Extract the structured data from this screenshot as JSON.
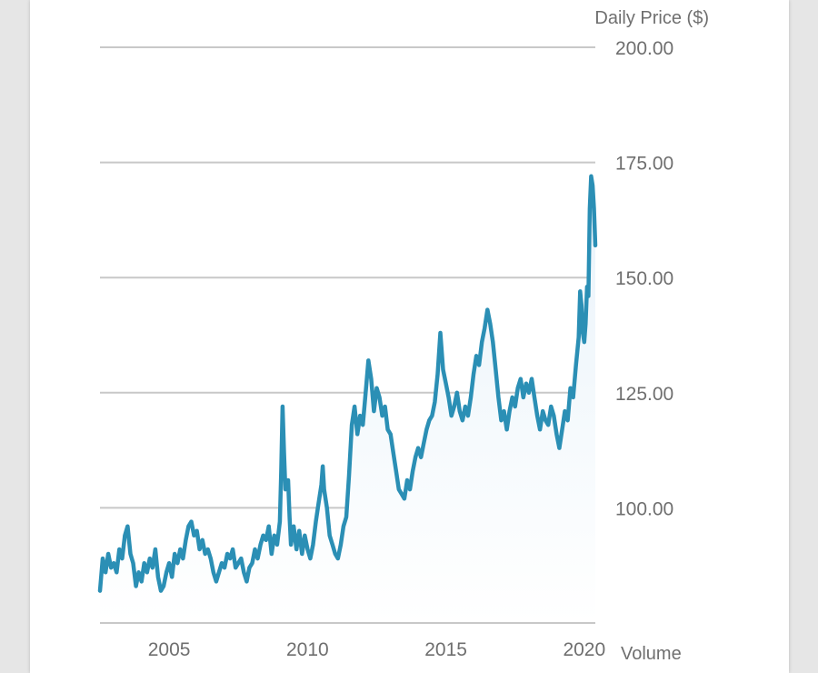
{
  "colors": {
    "line": "#2b8fb5",
    "grid": "#c8c8c8",
    "text": "#6f6f6f",
    "fill_top": "#e9f3fa"
  },
  "chart_data": {
    "type": "area",
    "ylabel": "Daily Price ($)",
    "volume_label": "Volume",
    "ylim": [
      75,
      200
    ],
    "xlim": [
      2002.5,
      2020.4
    ],
    "y_ticks": [
      "100.00",
      "125.00",
      "150.00",
      "175.00",
      "200.00"
    ],
    "y_tick_values": [
      100,
      125,
      150,
      175,
      200
    ],
    "x_ticks": [
      "2005",
      "2010",
      "2015",
      "2020"
    ],
    "x_tick_values": [
      2005,
      2010,
      2015,
      2020
    ],
    "grid": true,
    "series": [
      {
        "values": [
          [
            2002.5,
            82
          ],
          [
            2002.6,
            89
          ],
          [
            2002.7,
            86
          ],
          [
            2002.8,
            90
          ],
          [
            2002.9,
            87
          ],
          [
            2003.0,
            88
          ],
          [
            2003.1,
            86
          ],
          [
            2003.2,
            91
          ],
          [
            2003.3,
            89
          ],
          [
            2003.4,
            94
          ],
          [
            2003.5,
            96
          ],
          [
            2003.6,
            90
          ],
          [
            2003.7,
            88
          ],
          [
            2003.8,
            83
          ],
          [
            2003.9,
            86
          ],
          [
            2004.0,
            84
          ],
          [
            2004.1,
            88
          ],
          [
            2004.2,
            86
          ],
          [
            2004.3,
            89
          ],
          [
            2004.4,
            87
          ],
          [
            2004.5,
            91
          ],
          [
            2004.6,
            85
          ],
          [
            2004.7,
            82
          ],
          [
            2004.8,
            83
          ],
          [
            2004.9,
            86
          ],
          [
            2005.0,
            88
          ],
          [
            2005.1,
            85
          ],
          [
            2005.2,
            90
          ],
          [
            2005.3,
            88
          ],
          [
            2005.4,
            91
          ],
          [
            2005.5,
            89
          ],
          [
            2005.6,
            93
          ],
          [
            2005.7,
            96
          ],
          [
            2005.8,
            97
          ],
          [
            2005.9,
            94
          ],
          [
            2006.0,
            95
          ],
          [
            2006.1,
            91
          ],
          [
            2006.2,
            93
          ],
          [
            2006.3,
            90
          ],
          [
            2006.4,
            91
          ],
          [
            2006.5,
            89
          ],
          [
            2006.6,
            86
          ],
          [
            2006.7,
            84
          ],
          [
            2006.8,
            86
          ],
          [
            2006.9,
            88
          ],
          [
            2007.0,
            87
          ],
          [
            2007.1,
            90
          ],
          [
            2007.2,
            89
          ],
          [
            2007.3,
            91
          ],
          [
            2007.4,
            87
          ],
          [
            2007.5,
            88
          ],
          [
            2007.6,
            89
          ],
          [
            2007.7,
            86
          ],
          [
            2007.8,
            84
          ],
          [
            2007.9,
            87
          ],
          [
            2008.0,
            88
          ],
          [
            2008.1,
            91
          ],
          [
            2008.2,
            89
          ],
          [
            2008.3,
            92
          ],
          [
            2008.4,
            94
          ],
          [
            2008.5,
            93
          ],
          [
            2008.6,
            96
          ],
          [
            2008.7,
            90
          ],
          [
            2008.8,
            94
          ],
          [
            2008.9,
            92
          ],
          [
            2009.0,
            97
          ],
          [
            2009.05,
            108
          ],
          [
            2009.1,
            122
          ],
          [
            2009.15,
            112
          ],
          [
            2009.2,
            104
          ],
          [
            2009.3,
            106
          ],
          [
            2009.35,
            98
          ],
          [
            2009.4,
            92
          ],
          [
            2009.5,
            96
          ],
          [
            2009.6,
            91
          ],
          [
            2009.7,
            95
          ],
          [
            2009.8,
            90
          ],
          [
            2009.9,
            94
          ],
          [
            2010.0,
            91
          ],
          [
            2010.1,
            89
          ],
          [
            2010.2,
            92
          ],
          [
            2010.3,
            97
          ],
          [
            2010.4,
            101
          ],
          [
            2010.5,
            105
          ],
          [
            2010.55,
            109
          ],
          [
            2010.6,
            104
          ],
          [
            2010.7,
            100
          ],
          [
            2010.8,
            94
          ],
          [
            2010.9,
            92
          ],
          [
            2011.0,
            90
          ],
          [
            2011.1,
            89
          ],
          [
            2011.2,
            92
          ],
          [
            2011.3,
            96
          ],
          [
            2011.4,
            98
          ],
          [
            2011.5,
            107
          ],
          [
            2011.6,
            118
          ],
          [
            2011.7,
            122
          ],
          [
            2011.8,
            116
          ],
          [
            2011.9,
            120
          ],
          [
            2012.0,
            118
          ],
          [
            2012.1,
            125
          ],
          [
            2012.2,
            132
          ],
          [
            2012.3,
            128
          ],
          [
            2012.4,
            121
          ],
          [
            2012.5,
            126
          ],
          [
            2012.6,
            124
          ],
          [
            2012.7,
            120
          ],
          [
            2012.8,
            122
          ],
          [
            2012.9,
            117
          ],
          [
            2013.0,
            116
          ],
          [
            2013.1,
            112
          ],
          [
            2013.2,
            108
          ],
          [
            2013.3,
            104
          ],
          [
            2013.4,
            103
          ],
          [
            2013.5,
            102
          ],
          [
            2013.6,
            106
          ],
          [
            2013.7,
            104
          ],
          [
            2013.8,
            108
          ],
          [
            2013.9,
            111
          ],
          [
            2014.0,
            113
          ],
          [
            2014.1,
            111
          ],
          [
            2014.2,
            114
          ],
          [
            2014.3,
            117
          ],
          [
            2014.4,
            119
          ],
          [
            2014.5,
            120
          ],
          [
            2014.6,
            123
          ],
          [
            2014.7,
            129
          ],
          [
            2014.8,
            138
          ],
          [
            2014.9,
            130
          ],
          [
            2015.0,
            127
          ],
          [
            2015.1,
            124
          ],
          [
            2015.2,
            120
          ],
          [
            2015.3,
            122
          ],
          [
            2015.4,
            125
          ],
          [
            2015.5,
            121
          ],
          [
            2015.6,
            119
          ],
          [
            2015.7,
            122
          ],
          [
            2015.8,
            120
          ],
          [
            2015.9,
            124
          ],
          [
            2016.0,
            129
          ],
          [
            2016.1,
            133
          ],
          [
            2016.2,
            131
          ],
          [
            2016.3,
            136
          ],
          [
            2016.4,
            139
          ],
          [
            2016.5,
            143
          ],
          [
            2016.6,
            140
          ],
          [
            2016.7,
            136
          ],
          [
            2016.8,
            130
          ],
          [
            2016.9,
            124
          ],
          [
            2017.0,
            119
          ],
          [
            2017.1,
            121
          ],
          [
            2017.2,
            117
          ],
          [
            2017.3,
            121
          ],
          [
            2017.4,
            124
          ],
          [
            2017.5,
            122
          ],
          [
            2017.6,
            126
          ],
          [
            2017.7,
            128
          ],
          [
            2017.8,
            124
          ],
          [
            2017.9,
            127
          ],
          [
            2018.0,
            125
          ],
          [
            2018.1,
            128
          ],
          [
            2018.2,
            124
          ],
          [
            2018.3,
            120
          ],
          [
            2018.4,
            117
          ],
          [
            2018.5,
            121
          ],
          [
            2018.6,
            119
          ],
          [
            2018.7,
            118
          ],
          [
            2018.8,
            122
          ],
          [
            2018.9,
            120
          ],
          [
            2019.0,
            116
          ],
          [
            2019.1,
            113
          ],
          [
            2019.2,
            117
          ],
          [
            2019.3,
            121
          ],
          [
            2019.4,
            119
          ],
          [
            2019.5,
            126
          ],
          [
            2019.6,
            124
          ],
          [
            2019.7,
            131
          ],
          [
            2019.8,
            137
          ],
          [
            2019.85,
            147
          ],
          [
            2019.9,
            144
          ],
          [
            2019.95,
            138
          ],
          [
            2020.0,
            136
          ],
          [
            2020.05,
            140
          ],
          [
            2020.1,
            148
          ],
          [
            2020.15,
            146
          ],
          [
            2020.2,
            165
          ],
          [
            2020.25,
            172
          ],
          [
            2020.3,
            170
          ],
          [
            2020.35,
            165
          ],
          [
            2020.4,
            157
          ]
        ]
      }
    ]
  }
}
